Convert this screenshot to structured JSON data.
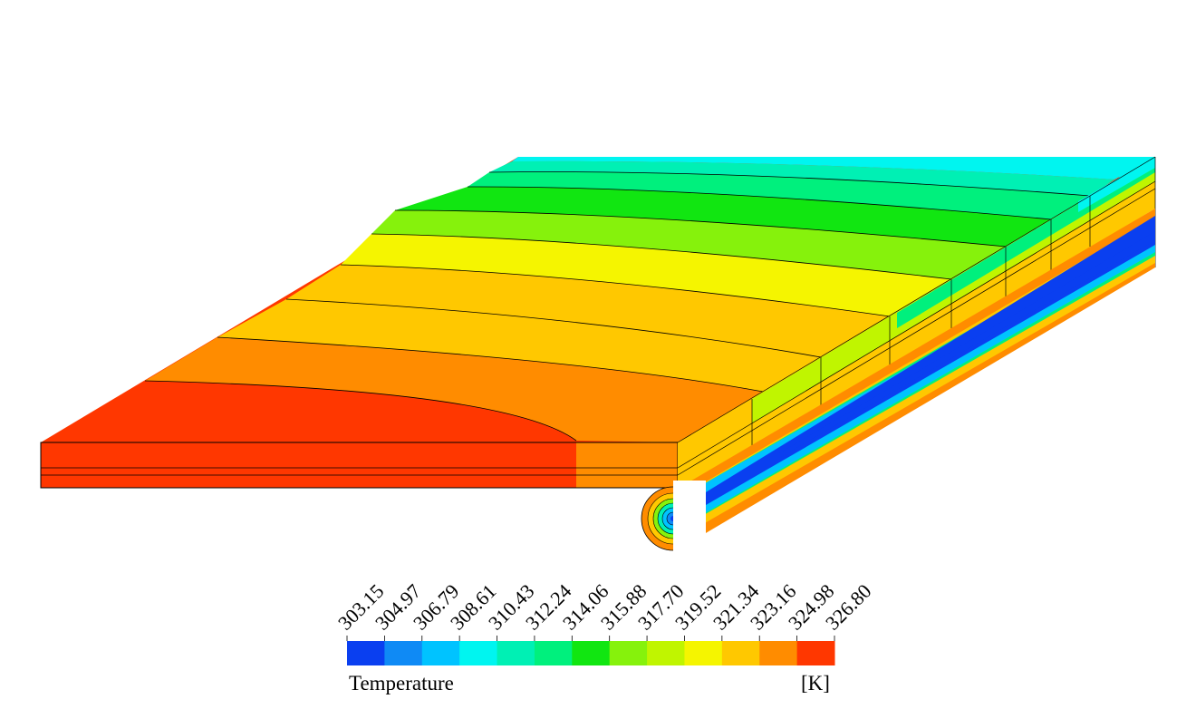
{
  "legend": {
    "title": "Temperature",
    "unit": "[K]",
    "ticks": [
      "303.15",
      "304.97",
      "306.79",
      "308.61",
      "310.43",
      "312.24",
      "314.06",
      "315.88",
      "317.70",
      "319.52",
      "321.34",
      "323.16",
      "324.98",
      "326.80"
    ],
    "colors": [
      "#0a3ff0",
      "#0f8af5",
      "#00c3ff",
      "#00f5f0",
      "#00f0b4",
      "#00f07d",
      "#11e611",
      "#86f20c",
      "#c0f500",
      "#f5f500",
      "#ffc800",
      "#ff8c00",
      "#ff3700"
    ]
  }
}
